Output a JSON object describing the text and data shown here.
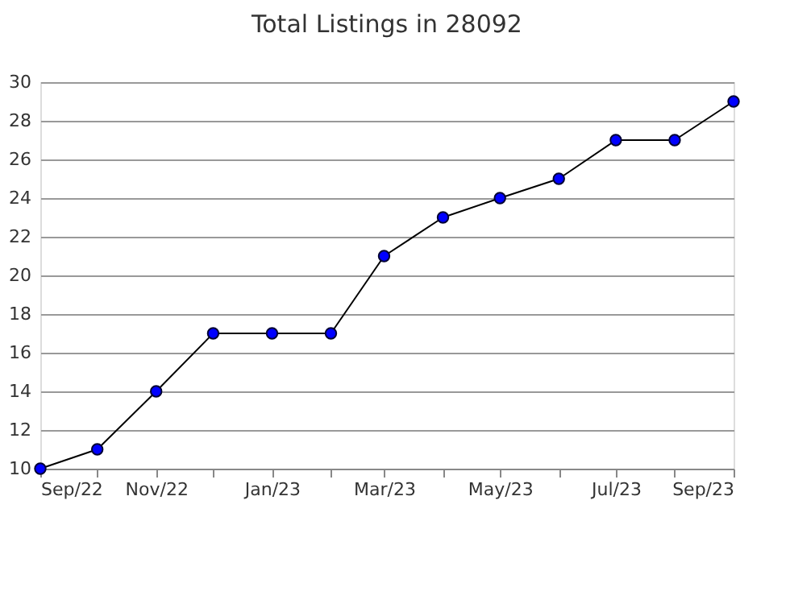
{
  "chart_data": {
    "type": "line",
    "title": "Total Listings in 28092",
    "x": [
      "2022-09",
      "2022-10",
      "2022-11",
      "2022-12",
      "2023-01",
      "2023-02",
      "2023-03",
      "2023-04",
      "2023-05",
      "2023-06",
      "2023-07",
      "2023-08",
      "2023-09"
    ],
    "series": [
      {
        "color": "#0000ff",
        "values": [
          10,
          11,
          14,
          17,
          17,
          17,
          21,
          23,
          24,
          25,
          27,
          27,
          29
        ]
      }
    ],
    "xlim": [
      "2022-09",
      "2023-09"
    ],
    "xticks": [
      {
        "value": "2022-09",
        "label": "Sep/22"
      },
      {
        "value": "2022-10",
        "label": null
      },
      {
        "value": "2022-11",
        "label": "Nov/22"
      },
      {
        "value": "2022-12",
        "label": null
      },
      {
        "value": "2023-01",
        "label": "Jan/23"
      },
      {
        "value": "2023-02",
        "label": null
      },
      {
        "value": "2023-03",
        "label": "Mar/23"
      },
      {
        "value": "2023-04",
        "label": null
      },
      {
        "value": "2023-05",
        "label": "May/23"
      },
      {
        "value": "2023-06",
        "label": null
      },
      {
        "value": "2023-07",
        "label": "Jul/23"
      },
      {
        "value": "2023-08",
        "label": null
      },
      {
        "value": "2023-09",
        "label": "Sep/23"
      }
    ],
    "ylim": [
      10,
      30
    ],
    "yticks": [
      10,
      12,
      14,
      16,
      18,
      20,
      22,
      24,
      26,
      28,
      30
    ],
    "grid": "y",
    "marker": "circle",
    "line_style": "solid"
  }
}
